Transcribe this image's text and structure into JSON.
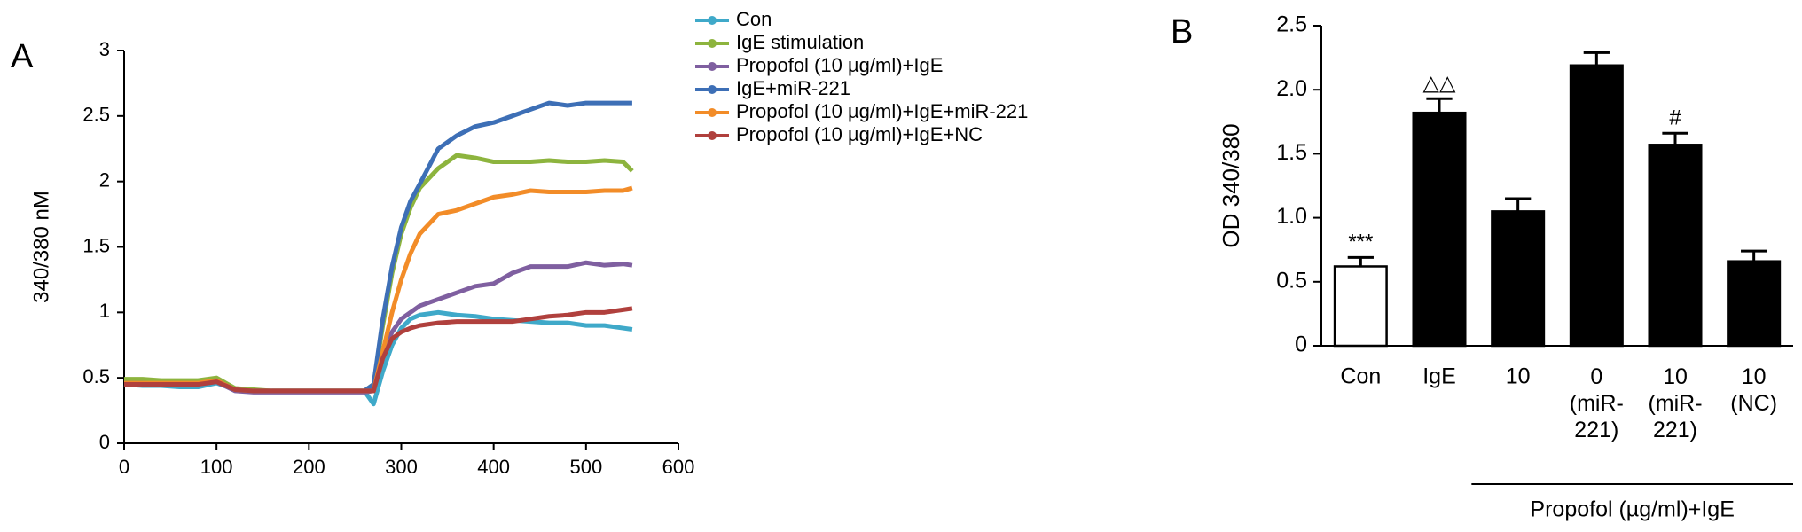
{
  "chart_data": [
    {
      "type": "line",
      "panel_label": "A",
      "ylabel": "340/380 nM",
      "x": [
        0,
        20,
        40,
        60,
        80,
        100,
        120,
        140,
        160,
        180,
        200,
        220,
        240,
        260,
        270,
        280,
        290,
        300,
        310,
        320,
        340,
        360,
        380,
        400,
        420,
        440,
        460,
        480,
        500,
        520,
        540,
        550
      ],
      "series": [
        {
          "name": "Con",
          "color": "#3fa9c9",
          "values": [
            0.45,
            0.44,
            0.44,
            0.43,
            0.43,
            0.46,
            0.41,
            0.4,
            0.4,
            0.4,
            0.4,
            0.4,
            0.4,
            0.4,
            0.3,
            0.55,
            0.75,
            0.88,
            0.95,
            0.98,
            1.0,
            0.98,
            0.97,
            0.95,
            0.94,
            0.93,
            0.92,
            0.92,
            0.9,
            0.9,
            0.88,
            0.87
          ]
        },
        {
          "name": "IgE stimulation",
          "color": "#8db43e",
          "values": [
            0.49,
            0.49,
            0.48,
            0.48,
            0.48,
            0.5,
            0.42,
            0.41,
            0.4,
            0.4,
            0.4,
            0.4,
            0.4,
            0.4,
            0.45,
            0.9,
            1.3,
            1.6,
            1.8,
            1.95,
            2.1,
            2.2,
            2.18,
            2.15,
            2.15,
            2.15,
            2.16,
            2.15,
            2.15,
            2.16,
            2.15,
            2.08
          ]
        },
        {
          "name": "Propofol  (10 µg/ml)+IgE",
          "color": "#7f5fa0",
          "values": [
            0.46,
            0.46,
            0.45,
            0.45,
            0.45,
            0.47,
            0.4,
            0.39,
            0.39,
            0.39,
            0.39,
            0.39,
            0.39,
            0.39,
            0.4,
            0.7,
            0.85,
            0.95,
            1.0,
            1.05,
            1.1,
            1.15,
            1.2,
            1.22,
            1.3,
            1.35,
            1.35,
            1.35,
            1.38,
            1.36,
            1.37,
            1.36
          ]
        },
        {
          "name": "IgE+miR-221",
          "color": "#3d6fb6",
          "values": [
            0.45,
            0.45,
            0.45,
            0.45,
            0.45,
            0.48,
            0.41,
            0.4,
            0.4,
            0.4,
            0.4,
            0.4,
            0.4,
            0.4,
            0.45,
            0.95,
            1.35,
            1.65,
            1.85,
            1.98,
            2.25,
            2.35,
            2.42,
            2.45,
            2.5,
            2.55,
            2.6,
            2.58,
            2.6,
            2.6,
            2.6,
            2.6
          ]
        },
        {
          "name": "Propofol (10 µg/ml)+IgE+miR-221",
          "color": "#f28c28",
          "values": [
            0.46,
            0.46,
            0.46,
            0.46,
            0.46,
            0.48,
            0.41,
            0.4,
            0.4,
            0.4,
            0.4,
            0.4,
            0.4,
            0.4,
            0.4,
            0.7,
            1.0,
            1.25,
            1.45,
            1.6,
            1.75,
            1.78,
            1.83,
            1.88,
            1.9,
            1.93,
            1.92,
            1.92,
            1.92,
            1.93,
            1.93,
            1.95
          ]
        },
        {
          "name": "Propofol (10 µg/ml)+IgE+NC",
          "color": "#b0403d",
          "values": [
            0.45,
            0.45,
            0.45,
            0.45,
            0.45,
            0.47,
            0.41,
            0.4,
            0.4,
            0.4,
            0.4,
            0.4,
            0.4,
            0.4,
            0.4,
            0.65,
            0.8,
            0.85,
            0.88,
            0.9,
            0.92,
            0.93,
            0.93,
            0.93,
            0.93,
            0.95,
            0.97,
            0.98,
            1.0,
            1.0,
            1.02,
            1.03
          ]
        }
      ],
      "xlim": [
        0,
        600
      ],
      "xticks": [
        0,
        100,
        200,
        300,
        400,
        500,
        600
      ],
      "ylim": [
        0,
        3
      ],
      "yticks": [
        0,
        0.5,
        1,
        1.5,
        2,
        2.5,
        3
      ],
      "grid": false,
      "legend": "right"
    },
    {
      "type": "bar",
      "panel_label": "B",
      "ylabel": "OD 340/380",
      "categories": [
        "Con",
        "IgE",
        "10",
        "0\n(miR-\n221)",
        "10\n(miR-\n221)",
        "10\n(NC)"
      ],
      "values": [
        0.62,
        1.82,
        1.05,
        2.19,
        1.57,
        0.66
      ],
      "errors": [
        0.07,
        0.11,
        0.1,
        0.1,
        0.09,
        0.08
      ],
      "colors": [
        "#ffffff",
        "#000000",
        "#000000",
        "#000000",
        "#000000",
        "#000000"
      ],
      "annotations": [
        "***",
        "△△",
        null,
        null,
        "#",
        null
      ],
      "group_label": "Propofol (µg/ml)+IgE",
      "ylim": [
        0,
        2.5
      ],
      "yticks": [
        0,
        0.5,
        {
          "value": 1,
          "label": "1.0"
        },
        1.5,
        {
          "value": 2,
          "label": "2.0"
        },
        2.5
      ],
      "grid": false
    }
  ]
}
